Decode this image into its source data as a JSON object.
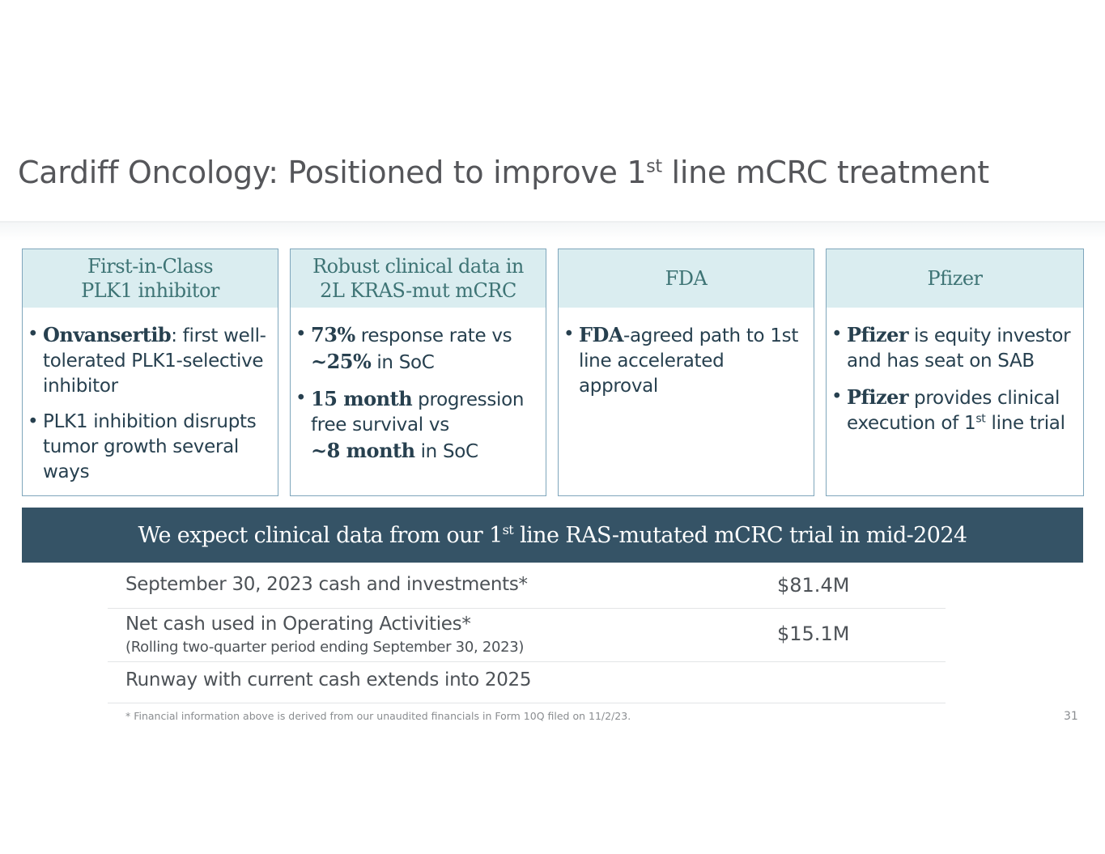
{
  "header": {
    "title_main": "Cardiff Oncology: Positioned to improve 1",
    "title_sup": "st",
    "title_rest": " line mCRC treatment"
  },
  "cards": [
    {
      "heading": [
        "First-in-Class",
        "PLK1 inhibitor"
      ],
      "bullets": [
        {
          "bold": "Onvansertib",
          "text": ": first well-tolerated PLK1-selective inhibitor"
        },
        {
          "text": "PLK1 inhibition disrupts tumor growth several ways"
        }
      ]
    },
    {
      "heading": [
        "Robust clinical data in",
        "2L KRAS-mut mCRC"
      ],
      "bullets": [
        {
          "bold": "73%",
          "text": " response rate vs",
          "bold2": "~25%",
          "text2": " in SoC"
        },
        {
          "bold": "15 month",
          "text": " progression free survival vs",
          "bold2": "~8 month",
          "text2": " in SoC"
        }
      ]
    },
    {
      "heading": [
        "FDA"
      ],
      "bullets": [
        {
          "bold": "FDA",
          "text": "-agreed path to 1st line accelerated approval"
        }
      ]
    },
    {
      "heading": [
        "Pfizer"
      ],
      "bullets": [
        {
          "bold": "Pfizer",
          "text": " is equity investor and has seat on SAB"
        },
        {
          "bold": "Pfizer",
          "text": " provides clinical execution of 1",
          "sup": "st",
          "text2": " line trial"
        }
      ]
    }
  ],
  "banner": {
    "text_main": "We expect clinical data from our 1",
    "text_sup": "st",
    "text_rest": " line RAS-mutated mCRC trial in mid-2024"
  },
  "financials": [
    {
      "label": "September 30, 2023 cash and investments*",
      "value": "$81.4M"
    },
    {
      "label": "Net cash used in Operating Activities*",
      "sublabel": "(Rolling two-quarter period ending September 30, 2023)",
      "value": "$15.1M"
    },
    {
      "label": "Runway with current cash extends into 2025"
    }
  ],
  "footnote": "* Financial information above is derived from our unaudited financials in Form 10Q filed on 11/2/23.",
  "page_number": "31"
}
